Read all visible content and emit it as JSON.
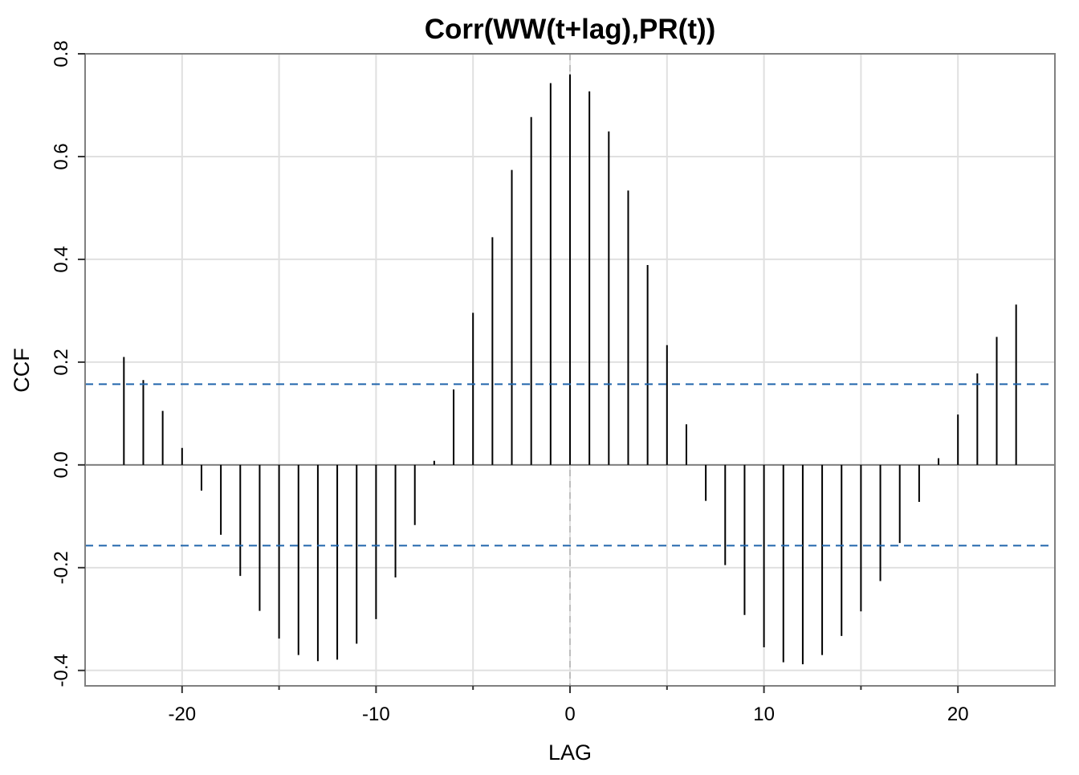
{
  "chart_data": {
    "type": "bar",
    "title": "Corr(WW(t+lag),PR(t))",
    "xlabel": "LAG",
    "ylabel": "CCF",
    "xlim": [
      -25,
      25
    ],
    "ylim": [
      -0.43,
      0.8
    ],
    "x_ticks": [
      -20,
      -10,
      0,
      10,
      20
    ],
    "x_tick_labels": [
      "-20",
      "-10",
      "0",
      "10",
      "20"
    ],
    "y_ticks": [
      -0.4,
      -0.2,
      0.0,
      0.2,
      0.4,
      0.6,
      0.8
    ],
    "y_tick_labels": [
      "-0.4",
      "-0.2",
      "0.0",
      "0.2",
      "0.4",
      "0.6",
      "0.8"
    ],
    "grid": true,
    "confidence_bound": 0.157,
    "lags": [
      -23,
      -22,
      -21,
      -20,
      -19,
      -18,
      -17,
      -16,
      -15,
      -14,
      -13,
      -12,
      -11,
      -10,
      -9,
      -8,
      -7,
      -6,
      -5,
      -4,
      -3,
      -2,
      -1,
      0,
      1,
      2,
      3,
      4,
      5,
      6,
      7,
      8,
      9,
      10,
      11,
      12,
      13,
      14,
      15,
      16,
      17,
      18,
      19,
      20,
      21,
      22,
      23
    ],
    "values": [
      0.21,
      0.165,
      0.105,
      0.033,
      -0.05,
      -0.136,
      -0.216,
      -0.284,
      -0.338,
      -0.37,
      -0.382,
      -0.379,
      -0.348,
      -0.3,
      -0.219,
      -0.117,
      0.008,
      0.147,
      0.296,
      0.443,
      0.574,
      0.677,
      0.743,
      0.76,
      0.727,
      0.649,
      0.534,
      0.389,
      0.233,
      0.079,
      -0.07,
      -0.195,
      -0.292,
      -0.355,
      -0.384,
      -0.388,
      -0.37,
      -0.333,
      -0.285,
      -0.226,
      -0.152,
      -0.072,
      0.013,
      0.098,
      0.178,
      0.249,
      0.312
    ],
    "colors": {
      "bars": "#000000",
      "confidence_lines": "#2166ac",
      "zero_line": "#808080",
      "center_line": "#bdbdbd",
      "grid": "#e0e0e0",
      "panel_border": "#808080"
    }
  }
}
